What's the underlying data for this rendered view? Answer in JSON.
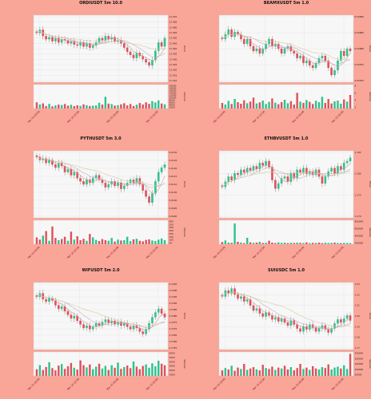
{
  "colors": {
    "background": "#f9a597",
    "plot_bg": "#f7f7f7",
    "grid": "#dddddd",
    "up": "#2fc28d",
    "down": "#e0505a",
    "ma1": "#d99a9a",
    "ma2": "#b8b0c8",
    "ma3": "#d8c89a"
  },
  "chart_data": [
    {
      "type": "candlestick",
      "title": "ORDIUSDT 5m 10.0",
      "ylabel": "Price",
      "volume_label": "Volume",
      "price_ticks": [
        "11.470",
        "11.465",
        "11.460",
        "11.455",
        "11.450",
        "11.445",
        "11.440",
        "11.435",
        "11.430",
        "11.425",
        "11.420",
        "11.415",
        "11.410"
      ],
      "volume_ticks": [
        "20000",
        "18000",
        "16000",
        "14000",
        "12000",
        "10000",
        "8000",
        "6000",
        "4000",
        "2000"
      ],
      "x_ticks": [
        "Mar 14 20:00",
        "Mar 14 22:00",
        "Mar 15 00:00",
        "Mar 15 02:00"
      ],
      "close": [
        11.455,
        11.458,
        11.452,
        11.449,
        11.451,
        11.447,
        11.45,
        11.446,
        11.449,
        11.448,
        11.445,
        11.447,
        11.444,
        11.443,
        11.446,
        11.442,
        11.445,
        11.441,
        11.443,
        11.446,
        11.45,
        11.448,
        11.452,
        11.449,
        11.451,
        11.447,
        11.448,
        11.445,
        11.441,
        11.437,
        11.434,
        11.431,
        11.436,
        11.433,
        11.43,
        11.427,
        11.424,
        11.429,
        11.438,
        11.446,
        11.442,
        11.45
      ],
      "volume": [
        5200,
        3400,
        4300,
        2100,
        3900,
        1800,
        2600,
        3300,
        2900,
        3800,
        2400,
        3100,
        2000,
        2700,
        2200,
        3500,
        2800,
        2100,
        2400,
        2600,
        4800,
        3300,
        9800,
        4100,
        3700,
        2500,
        2800,
        3500,
        4400,
        2600,
        3800,
        2100,
        3200,
        4600,
        3400,
        5200,
        3900,
        6100,
        5100,
        6800,
        4200,
        3500
      ],
      "ylim": [
        11.408,
        11.472
      ],
      "vol_max": 20000
    },
    {
      "type": "candlestick",
      "title": "BEAMXUSDT 5m 1.0",
      "ylabel": "Price",
      "volume_label": "Volume",
      "price_ticks": [
        "0.02890",
        "0.02885",
        "0.02880",
        "0.02875",
        "0.02870"
      ],
      "volume_ticks": [
        "8",
        "6",
        "4",
        "2"
      ],
      "x_ticks": [
        "Mar 14 20:00",
        "Mar 14 22:00",
        "Mar 15 00:00",
        "Mar 15 02:00"
      ],
      "close": [
        0.02883,
        0.02885,
        0.02887,
        0.02884,
        0.02886,
        0.02885,
        0.02883,
        0.02881,
        0.02883,
        0.0288,
        0.02878,
        0.02879,
        0.02877,
        0.02879,
        0.02881,
        0.02883,
        0.0288,
        0.02881,
        0.02879,
        0.02877,
        0.02879,
        0.0288,
        0.02878,
        0.02877,
        0.02875,
        0.02876,
        0.02873,
        0.02874,
        0.02872,
        0.02871,
        0.02873,
        0.02875,
        0.02876,
        0.02874,
        0.02871,
        0.02868,
        0.0287,
        0.02874,
        0.02878,
        0.02876,
        0.02879,
        0.02878
      ],
      "volume": [
        2.1,
        1.5,
        2.9,
        1.7,
        3.6,
        2.4,
        1.8,
        3.1,
        2.0,
        2.6,
        4.1,
        1.9,
        2.3,
        3.0,
        1.7,
        2.5,
        3.8,
        2.2,
        1.6,
        2.4,
        3.3,
        2.0,
        2.8,
        1.5,
        5.9,
        2.6,
        2.1,
        3.2,
        2.5,
        1.7,
        2.9,
        2.4,
        4.4,
        2.1,
        3.6,
        1.9,
        2.7,
        3.0,
        1.8,
        3.4,
        2.6,
        5.1
      ],
      "ylim": [
        0.02865,
        0.02893
      ],
      "vol_max": 9
    },
    {
      "type": "candlestick",
      "title": "PYTHUSDT 5m 3.0",
      "ylabel": "Price",
      "volume_label": "Volume",
      "price_ticks": [
        "0.6130",
        "0.6125",
        "0.6120",
        "0.6115",
        "0.6110",
        "0.6105",
        "0.6100",
        "0.6095",
        "0.6090"
      ],
      "volume_ticks": [
        "400",
        "350",
        "300",
        "250",
        "200",
        "150",
        "100",
        "50"
      ],
      "x_ticks": [
        "Mar 14 20:00",
        "Mar 14 22:00",
        "Mar 15 00:00",
        "Mar 15 02:00"
      ],
      "close": [
        0.6128,
        0.6126,
        0.6127,
        0.6124,
        0.6126,
        0.6123,
        0.6121,
        0.6124,
        0.6122,
        0.6118,
        0.612,
        0.6116,
        0.6118,
        0.6114,
        0.6112,
        0.611,
        0.6113,
        0.6111,
        0.6114,
        0.6116,
        0.6113,
        0.6111,
        0.6108,
        0.611,
        0.6112,
        0.6109,
        0.6111,
        0.6107,
        0.6109,
        0.6111,
        0.6113,
        0.6111,
        0.6114,
        0.611,
        0.6106,
        0.6102,
        0.6098,
        0.6104,
        0.6112,
        0.6118,
        0.6121,
        0.6123
      ],
      "volume": [
        120,
        80,
        150,
        230,
        60,
        310,
        110,
        70,
        90,
        130,
        60,
        220,
        80,
        140,
        70,
        95,
        60,
        180,
        120,
        75,
        55,
        90,
        70,
        60,
        110,
        45,
        80,
        65,
        70,
        130,
        55,
        85,
        95,
        60,
        50,
        75,
        85,
        65,
        55,
        80,
        100,
        70
      ],
      "ylim": [
        0.6088,
        0.6132
      ],
      "vol_max": 420
    },
    {
      "type": "candlestick",
      "title": "ETHBVUSDT 5m 1.0",
      "ylabel": "Price",
      "volume_label": "Volume",
      "price_ticks": [
        "1.185",
        "1.180",
        "1.175",
        "1.170"
      ],
      "volume_ticks": [
        "800000",
        "600000",
        "400000",
        "200000"
      ],
      "x_ticks": [
        "Mar 14 20:00",
        "Mar 14 22:00",
        "Mar 15 00:00",
        "Mar 15 02:00"
      ],
      "close": [
        1.177,
        1.1785,
        1.18,
        1.179,
        1.181,
        1.1805,
        1.182,
        1.1812,
        1.1825,
        1.1818,
        1.183,
        1.1822,
        1.184,
        1.1832,
        1.1845,
        1.1828,
        1.179,
        1.1765,
        1.178,
        1.1795,
        1.18,
        1.1785,
        1.181,
        1.1795,
        1.182,
        1.1812,
        1.1825,
        1.1808,
        1.1815,
        1.1805,
        1.182,
        1.18,
        1.178,
        1.18,
        1.1815,
        1.1825,
        1.181,
        1.183,
        1.182,
        1.184,
        1.1845,
        1.1855
      ],
      "volume": [
        80000,
        140000,
        60000,
        50000,
        780000,
        90000,
        60000,
        40000,
        240000,
        70000,
        50000,
        60000,
        90000,
        45000,
        55000,
        130000,
        60000,
        40000,
        70000,
        50000,
        60000,
        40000,
        55000,
        45000,
        60000,
        50000,
        45000,
        70000,
        40000,
        50000,
        45000,
        60000,
        40000,
        55000,
        45000,
        50000,
        60000,
        45000,
        40000,
        50000,
        45000,
        40000
      ],
      "ylim": [
        1.168,
        1.1875
      ],
      "vol_max": 900000
    },
    {
      "type": "candlestick",
      "title": "WIFUSDT 5m 2.0",
      "ylabel": "Price",
      "volume_label": "Volume",
      "price_ticks": [
        "2.2405",
        "2.2400",
        "2.2395",
        "2.2390",
        "2.2385",
        "2.2380",
        "2.2375",
        "2.2370",
        "2.2365",
        "2.2360",
        "2.2355"
      ],
      "volume_ticks": [
        "6000",
        "5000",
        "4000",
        "3000",
        "2000",
        "1000"
      ],
      "x_ticks": [
        "Mar 14 20:00",
        "Mar 14 22:00",
        "Mar 15 00:00",
        "Mar 15 02:00"
      ],
      "close": [
        2.2396,
        2.2399,
        2.2394,
        2.2392,
        2.2395,
        2.2393,
        2.2389,
        2.2386,
        2.2388,
        2.2384,
        2.2381,
        2.2378,
        2.238,
        2.2376,
        2.2373,
        2.237,
        2.2372,
        2.2369,
        2.2371,
        2.2374,
        2.2372,
        2.2375,
        2.2377,
        2.2374,
        2.2376,
        2.2373,
        2.2375,
        2.2372,
        2.2374,
        2.2371,
        2.2369,
        2.2372,
        2.237,
        2.2367,
        2.2365,
        2.2369,
        2.2374,
        2.2379,
        2.2383,
        2.2386,
        2.2382,
        2.2379
      ],
      "volume": [
        1800,
        2900,
        1600,
        2400,
        3700,
        2100,
        1500,
        2800,
        3200,
        1900,
        2600,
        3500,
        2200,
        1700,
        4200,
        2900,
        2300,
        3100,
        1800,
        2500,
        3300,
        2000,
        2700,
        1600,
        2900,
        2200,
        3600,
        1900,
        2400,
        2800,
        2100,
        3900,
        2500,
        1800,
        2700,
        3100,
        2200,
        3400,
        2600,
        4100,
        3300,
        2900
      ],
      "ylim": [
        2.2352,
        2.2408
      ],
      "vol_max": 6500
    },
    {
      "type": "candlestick",
      "title": "SUIUSDC 5m 1.0",
      "ylabel": "Price",
      "volume_label": "Volume",
      "price_ticks": [
        "1.23",
        "1.22",
        "1.21",
        "1.20",
        "1.19",
        "1.18",
        "1.17"
      ],
      "volume_ticks": [
        "250000",
        "200000",
        "150000",
        "100000",
        "50000"
      ],
      "x_ticks": [
        "Mar 14 20:00",
        "Mar 14 22:00",
        "Mar 15 00:00",
        "Mar 15 02:00"
      ],
      "close": [
        1.218,
        1.224,
        1.221,
        1.226,
        1.22,
        1.216,
        1.218,
        1.213,
        1.215,
        1.209,
        1.204,
        1.206,
        1.201,
        1.198,
        1.202,
        1.199,
        1.195,
        1.197,
        1.193,
        1.196,
        1.192,
        1.189,
        1.194,
        1.19,
        1.186,
        1.183,
        1.188,
        1.185,
        1.19,
        1.187,
        1.183,
        1.186,
        1.189,
        1.185,
        1.182,
        1.186,
        1.191,
        1.195,
        1.192,
        1.196,
        1.199,
        1.194
      ],
      "volume": [
        60000,
        85000,
        70000,
        110000,
        55000,
        90000,
        75000,
        130000,
        65000,
        80000,
        95000,
        70000,
        60000,
        120000,
        85000,
        75000,
        100000,
        65000,
        90000,
        80000,
        110000,
        70000,
        95000,
        60000,
        85000,
        130000,
        75000,
        90000,
        65000,
        105000,
        80000,
        70000,
        95000,
        85000,
        125000,
        70000,
        90000,
        100000,
        80000,
        115000,
        75000,
        240000
      ],
      "ylim": [
        1.165,
        1.232
      ],
      "vol_max": 260000
    }
  ]
}
